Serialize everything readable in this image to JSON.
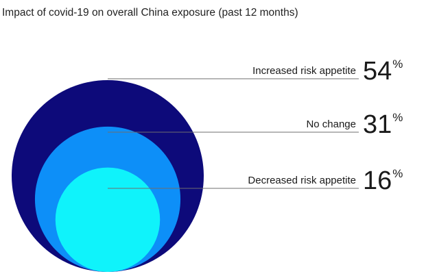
{
  "chart_data": {
    "type": "nested-circles",
    "title": "Impact of covid-19 on overall China exposure (past 12 months)",
    "categories": [
      "Increased risk appetite",
      "No change",
      "Decreased risk appetite"
    ],
    "values": [
      54,
      31,
      16
    ],
    "display_values": [
      "54",
      "31",
      "16"
    ],
    "unit": "%",
    "colors": [
      "#0d0a7a",
      "#0d8ff8",
      "#0ff3fb"
    ]
  }
}
